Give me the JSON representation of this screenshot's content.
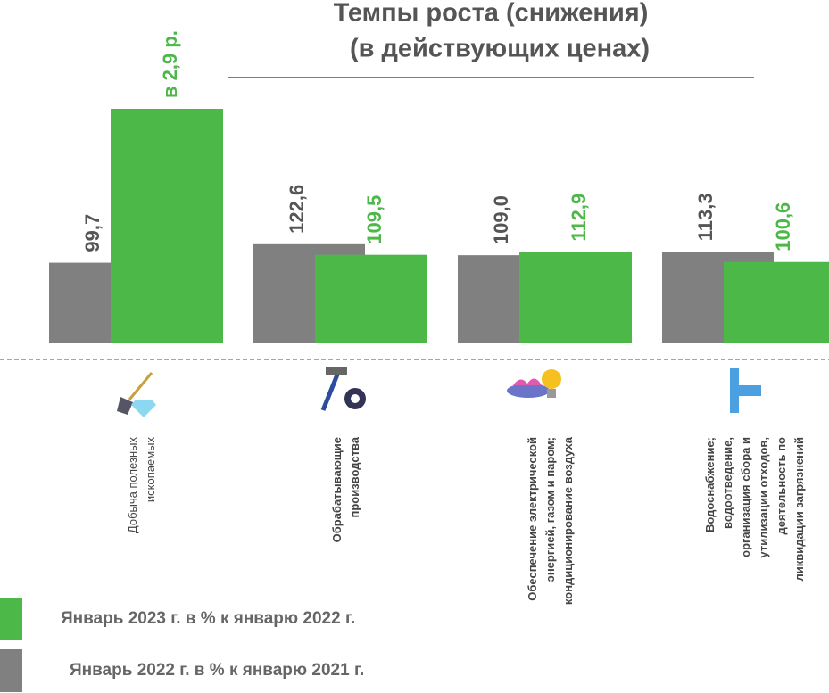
{
  "chart_data": {
    "type": "bar",
    "title": "Темпы роста (снижения)",
    "subtitle": "(в действующих ценах)",
    "categories": [
      "Добыча полезных\nископаемых",
      "Обрабатывающие\nпроизводства",
      "Обеспечение электрической\nэнергией, газом и паром;\nкондиционирование воздуха",
      "Водоснабжение;\nводоотведение,\nорганизация сбора и\nутилизации отходов,\nдеятельность по\nликвидации загрязнений"
    ],
    "series": [
      {
        "name": "Январь  2022 г. в % к январю 2021 г.",
        "color": "#808080",
        "values": [
          99.7,
          122.6,
          109.0,
          113.3
        ],
        "value_labels": [
          "99,7",
          "122,6",
          "109,0",
          "113,3"
        ]
      },
      {
        "name": "Январь 2023 г. в % к январю 2022 г.",
        "color": "#4cb848",
        "values": [
          290,
          109.5,
          112.9,
          100.6
        ],
        "value_labels": [
          "в 2,9 р.",
          "109,5",
          "112,9",
          "100,6"
        ]
      }
    ]
  }
}
